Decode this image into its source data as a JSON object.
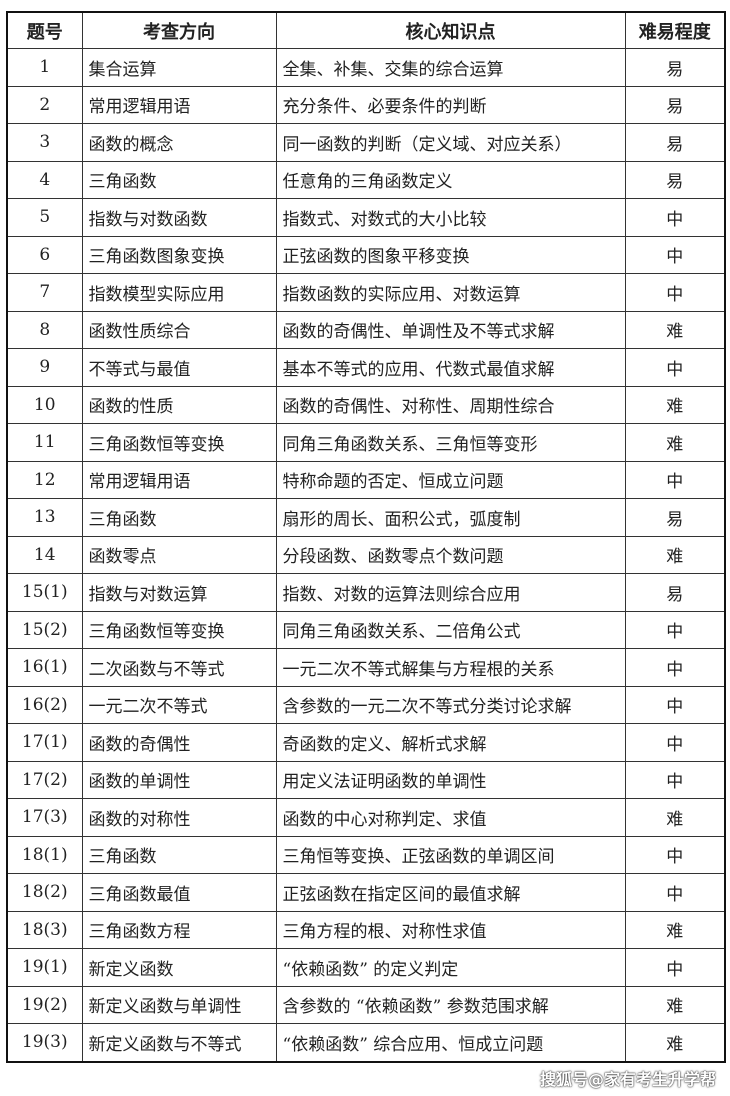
{
  "headers": [
    "题号",
    "考查方向",
    "核心知识点",
    "难易程度"
  ],
  "rows": [
    [
      "1",
      "集合运算",
      "全集、补集、交集的综合运算",
      "易"
    ],
    [
      "2",
      "常用逻辑用语",
      "充分条件、必要条件的判断",
      "易"
    ],
    [
      "3",
      "函数的概念",
      "同一函数的判断（定义域、对应关系）",
      "易"
    ],
    [
      "4",
      "三角函数",
      "任意角的三角函数定义",
      "易"
    ],
    [
      "5",
      "指数与对数函数",
      "指数式、对数式的大小比较",
      "中"
    ],
    [
      "6",
      "三角函数图象变换",
      "正弦函数的图象平移变换",
      "中"
    ],
    [
      "7",
      "指数模型实际应用",
      "指数函数的实际应用、对数运算",
      "中"
    ],
    [
      "8",
      "函数性质综合",
      "函数的奇偶性、单调性及不等式求解",
      "难"
    ],
    [
      "9",
      "不等式与最值",
      "基本不等式的应用、代数式最值求解",
      "中"
    ],
    [
      "10",
      "函数的性质",
      "函数的奇偶性、对称性、周期性综合",
      "难"
    ],
    [
      "11",
      "三角函数恒等变换",
      "同角三角函数关系、三角恒等变形",
      "难"
    ],
    [
      "12",
      "常用逻辑用语",
      "特称命题的否定、恒成立问题",
      "中"
    ],
    [
      "13",
      "三角函数",
      "扇形的周长、面积公式，弧度制",
      "易"
    ],
    [
      "14",
      "函数零点",
      "分段函数、函数零点个数问题",
      "难"
    ],
    [
      "15(1)",
      "指数与对数运算",
      "指数、对数的运算法则综合应用",
      "易"
    ],
    [
      "15(2)",
      "三角函数恒等变换",
      "同角三角函数关系、二倍角公式",
      "中"
    ],
    [
      "16(1)",
      "二次函数与不等式",
      "一元二次不等式解集与方程根的关系",
      "中"
    ],
    [
      "16(2)",
      "一元二次不等式",
      "含参数的一元二次不等式分类讨论求解",
      "中"
    ],
    [
      "17(1)",
      "函数的奇偶性",
      "奇函数的定义、解析式求解",
      "中"
    ],
    [
      "17(2)",
      "函数的单调性",
      "用定义法证明函数的单调性",
      "中"
    ],
    [
      "17(3)",
      "函数的对称性",
      "函数的中心对称判定、求值",
      "难"
    ],
    [
      "18(1)",
      "三角函数",
      "三角恒等变换、正弦函数的单调区间",
      "中"
    ],
    [
      "18(2)",
      "三角函数最值",
      "正弦函数在指定区间的最值求解",
      "中"
    ],
    [
      "18(3)",
      "三角函数方程",
      "三角方程的根、对称性求值",
      "难"
    ],
    [
      "19(1)",
      "新定义函数",
      "“依赖函数” 的定义判定",
      "中"
    ],
    [
      "19(2)",
      "新定义函数与单调性",
      "含参数的 “依赖函数” 参数范围求解",
      "难"
    ],
    [
      "19(3)",
      "新定义函数与不等式",
      "“依赖函数” 综合应用、恒成立问题",
      "难"
    ]
  ],
  "watermark": "搜狐号@家有考生升学帮"
}
